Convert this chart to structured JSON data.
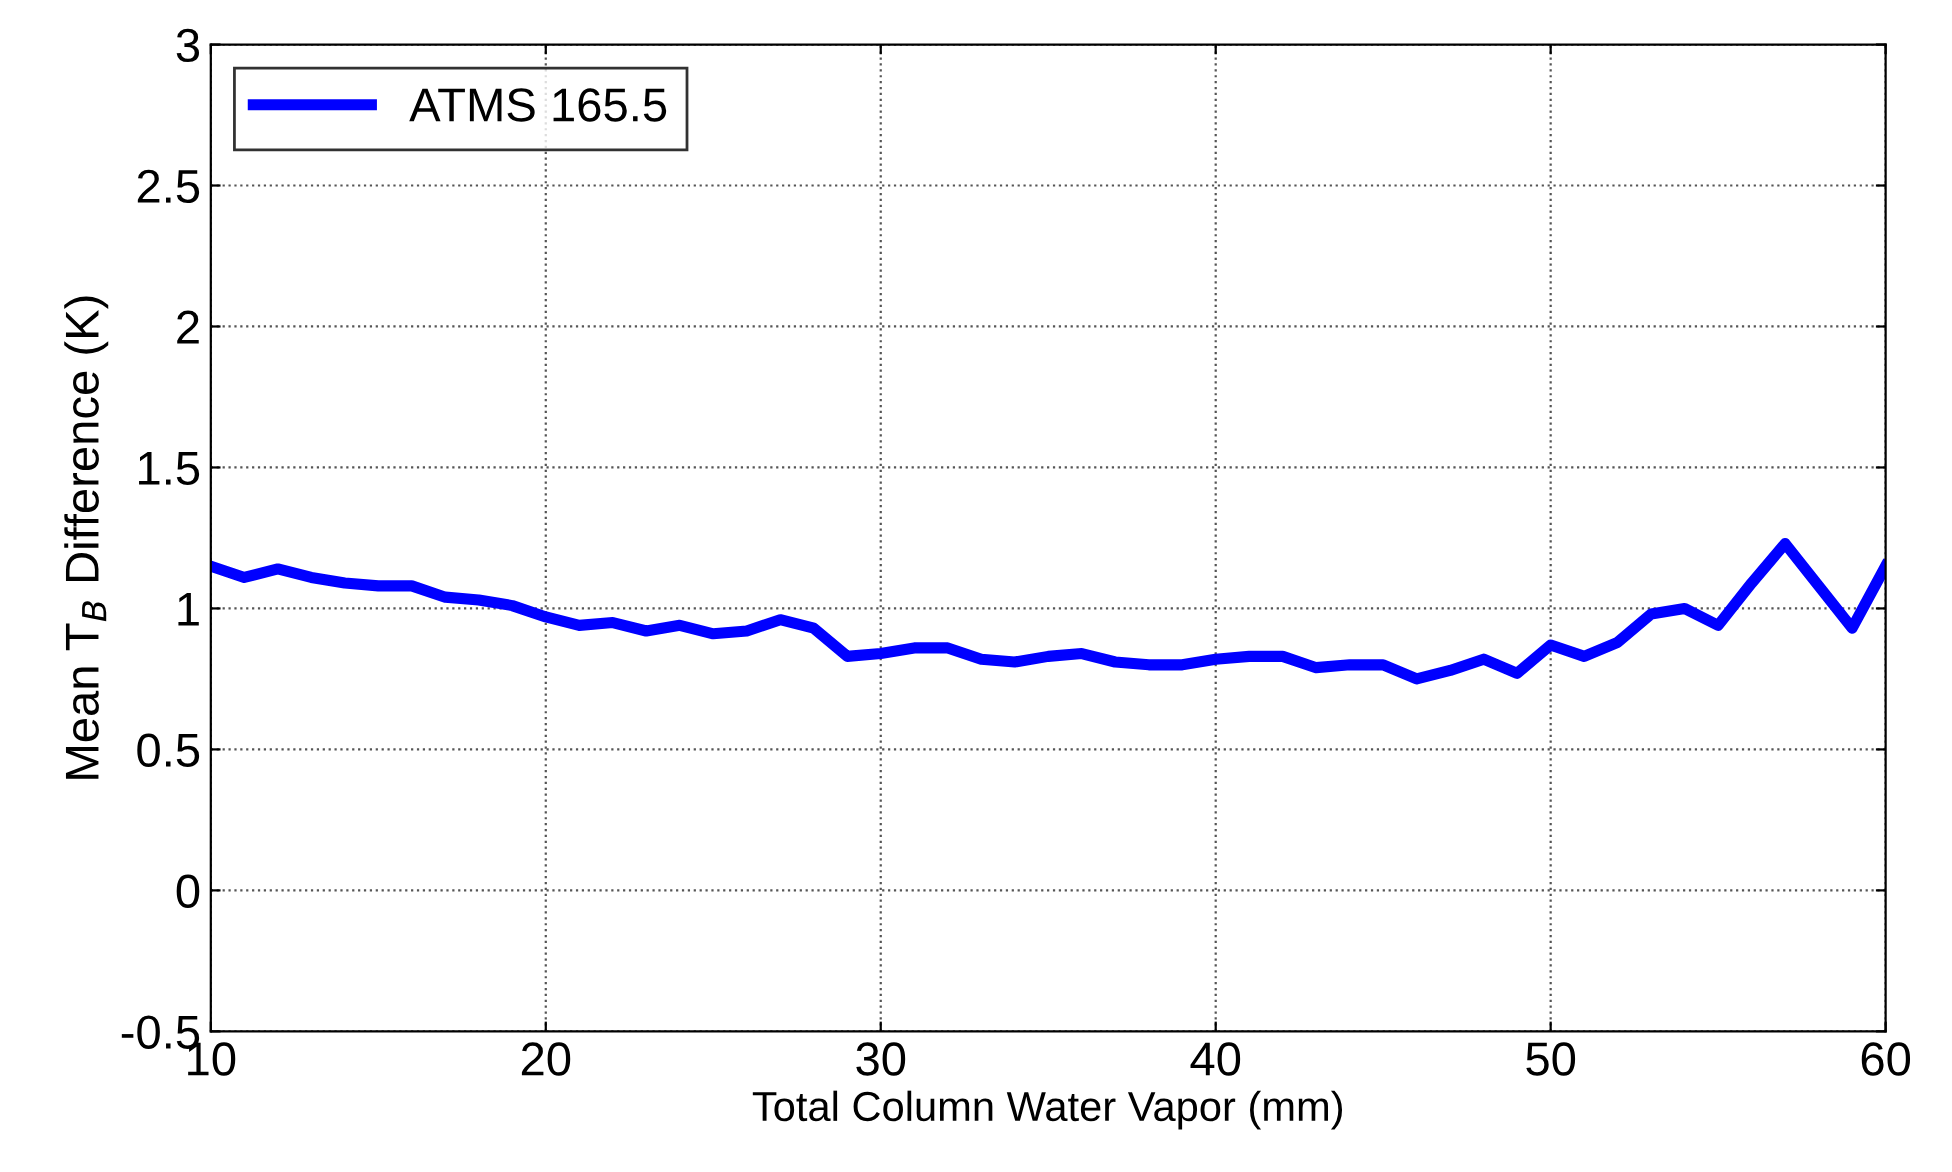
{
  "chart_data": {
    "type": "line",
    "xlabel": "Total Column Water Vapor (mm)",
    "ylabel": "Mean T$_{B}$ Difference (K)",
    "x": [
      10,
      11,
      12,
      13,
      14,
      15,
      16,
      17,
      18,
      19,
      20,
      21,
      22,
      23,
      24,
      25,
      26,
      27,
      28,
      29,
      30,
      31,
      32,
      33,
      34,
      35,
      36,
      37,
      38,
      39,
      40,
      41,
      42,
      43,
      44,
      45,
      46,
      47,
      48,
      49,
      50,
      51,
      52,
      53,
      54,
      55,
      56,
      57,
      58,
      59,
      60
    ],
    "series": [
      {
        "name": "ATMS 165.5",
        "color": "#0000ff",
        "values": [
          1.15,
          1.11,
          1.14,
          1.11,
          1.09,
          1.08,
          1.08,
          1.04,
          1.03,
          1.01,
          0.97,
          0.94,
          0.95,
          0.92,
          0.94,
          0.91,
          0.92,
          0.96,
          0.93,
          0.83,
          0.84,
          0.86,
          0.86,
          0.82,
          0.81,
          0.83,
          0.84,
          0.81,
          0.8,
          0.8,
          0.82,
          0.83,
          0.83,
          0.79,
          0.8,
          0.8,
          0.75,
          0.78,
          0.82,
          0.77,
          0.87,
          0.83,
          0.88,
          0.98,
          1.0,
          0.94,
          1.09,
          1.23,
          1.08,
          0.93,
          1.15
        ]
      }
    ],
    "xlim": [
      10,
      60
    ],
    "ylim": [
      -0.5,
      3
    ],
    "xticks": [
      10,
      20,
      30,
      40,
      50,
      60
    ],
    "yticks": [
      -0.5,
      0,
      0.5,
      1,
      1.5,
      2,
      2.5,
      3
    ],
    "grid": true,
    "legend": "top left",
    "line_style": "solid",
    "marker": "none"
  }
}
